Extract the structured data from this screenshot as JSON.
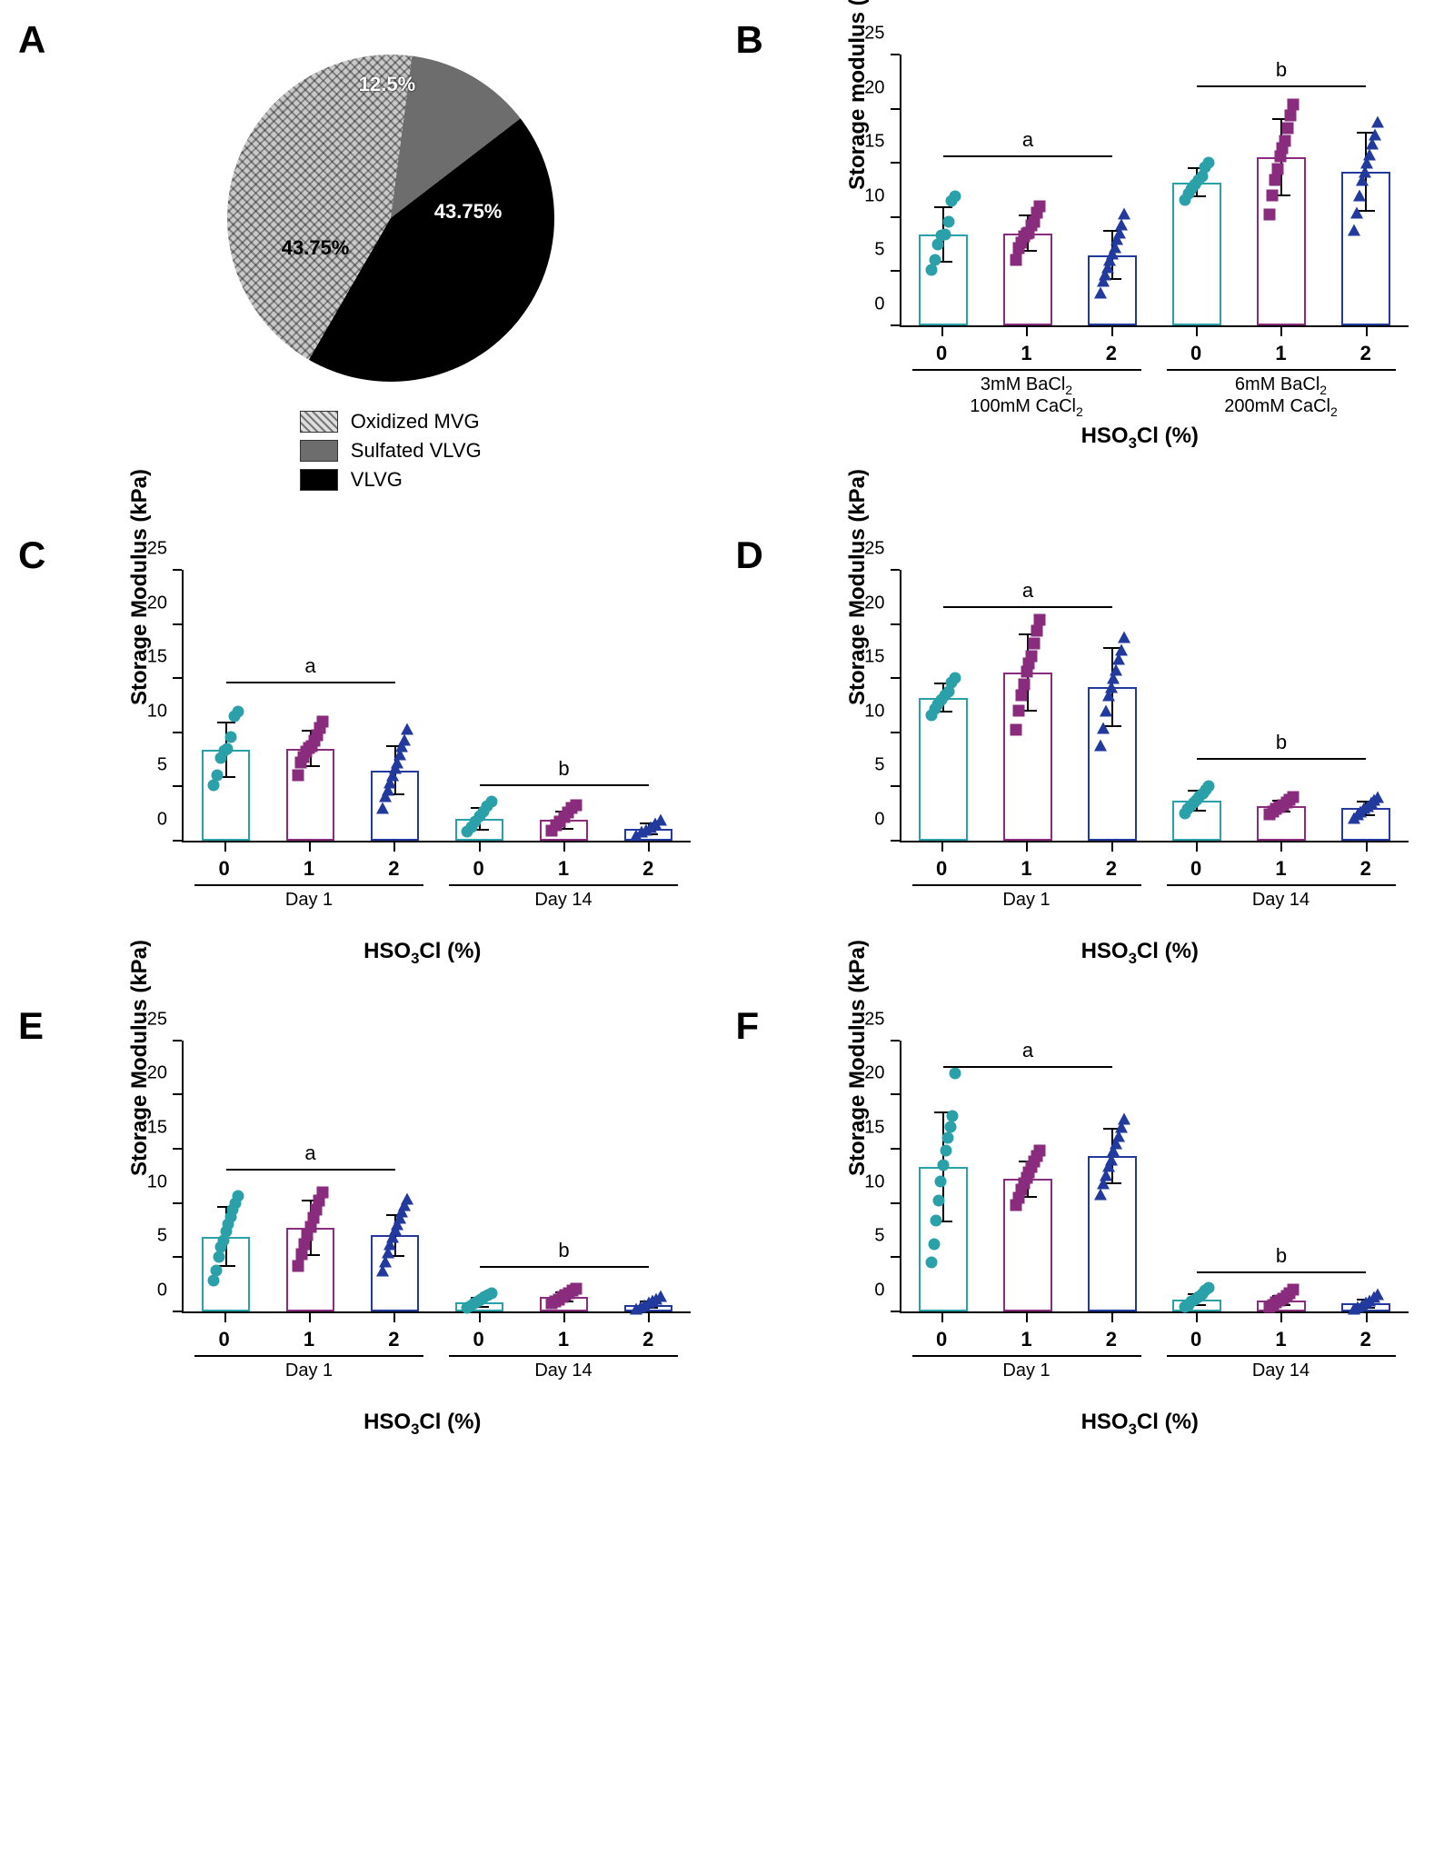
{
  "colors": {
    "series0": {
      "stroke": "#2aa0a8",
      "fill": "#2aa0a8"
    },
    "series1": {
      "stroke": "#8a2c7d",
      "fill": "#8a2c7d"
    },
    "series2": {
      "stroke": "#223a9e",
      "fill": "#223a9e"
    },
    "pie_oxidized": "#c9c9c9",
    "pie_sulfated": "#6d6d6d",
    "pie_vlvg": "#000000",
    "bg": "#ffffff"
  },
  "markers": [
    "circle",
    "square",
    "triangle"
  ],
  "marker_size": 13,
  "bar_border_width": 2,
  "axis_fontsize": 20,
  "label_fontsize": 24,
  "panel_label_fontsize": 42,
  "x_axis_title": "HSO₃Cl (%)",
  "y_axis_title": "Storage modulus (kPa)",
  "y_axis_title_cap": "Storage Modulus (kPa)",
  "panelA": {
    "label": "A",
    "type": "pie",
    "slices": [
      {
        "name": "Oxidized MVG",
        "pct": 43.75,
        "color_key": "pie_oxidized",
        "pattern": "crosshatch",
        "text_color": "#000"
      },
      {
        "name": "Sulfated VLVG",
        "pct": 12.5,
        "color_key": "pie_sulfated",
        "pattern": "solid",
        "text_color": "#fff"
      },
      {
        "name": "VLVG",
        "pct": 43.75,
        "color_key": "pie_vlvg",
        "pattern": "solid",
        "text_color": "#fff"
      }
    ],
    "legend": [
      {
        "swatch": "crosshatch",
        "text": "Oxidized MVG"
      },
      {
        "swatch": "gray",
        "text": "Sulfated VLVG"
      },
      {
        "swatch": "black",
        "text": "VLVG"
      }
    ]
  },
  "panelB": {
    "label": "B",
    "type": "bar_scatter",
    "ylim": [
      0,
      25
    ],
    "ytick_step": 5,
    "y_title_key": "y_axis_title",
    "groups": [
      {
        "x": "0",
        "series": 0,
        "mean": 8.4,
        "err": 2.6,
        "points": [
          5.1,
          6.0,
          7.5,
          8.3,
          8.4,
          9.6,
          11.5,
          11.9
        ]
      },
      {
        "x": "1",
        "series": 1,
        "mean": 8.5,
        "err": 1.7,
        "points": [
          6.0,
          7.1,
          7.6,
          8.2,
          8.5,
          8.6,
          9.2,
          9.6,
          10.4,
          11.0
        ]
      },
      {
        "x": "2",
        "series": 2,
        "mean": 6.5,
        "err": 2.3,
        "points": [
          3.0,
          4.1,
          4.7,
          5.4,
          6.0,
          6.6,
          7.2,
          8.0,
          8.6,
          9.3,
          10.3
        ]
      },
      {
        "x": "0",
        "series": 0,
        "mean": 13.2,
        "err": 1.4,
        "points": [
          11.6,
          12.2,
          12.6,
          13.0,
          13.4,
          13.8,
          14.6,
          15.0
        ]
      },
      {
        "x": "1",
        "series": 1,
        "mean": 15.5,
        "err": 3.6,
        "points": [
          10.2,
          12.0,
          13.4,
          14.4,
          15.6,
          16.4,
          17.0,
          18.2,
          19.4,
          20.4
        ]
      },
      {
        "x": "2",
        "series": 2,
        "mean": 14.2,
        "err": 3.7,
        "points": [
          8.8,
          10.4,
          12.0,
          13.4,
          14.2,
          15.0,
          15.8,
          16.8,
          17.6,
          18.8
        ]
      }
    ],
    "group_brackets": [
      {
        "from": 0,
        "to": 2,
        "lines": [
          "3mM BaCl₂",
          "100mM CaCl₂"
        ]
      },
      {
        "from": 3,
        "to": 5,
        "lines": [
          "6mM BaCl₂",
          "200mM CaCl₂"
        ]
      }
    ],
    "sig": [
      {
        "from": 0,
        "to": 2,
        "label": "a",
        "y": 15.5
      },
      {
        "from": 3,
        "to": 5,
        "label": "b",
        "y": 22
      }
    ]
  },
  "panelC": {
    "label": "C",
    "type": "bar_scatter",
    "ylim": [
      0,
      25
    ],
    "ytick_step": 5,
    "y_title_key": "y_axis_title_cap",
    "groups": [
      {
        "x": "0",
        "series": 0,
        "mean": 8.4,
        "err": 2.6,
        "points": [
          5.1,
          6.0,
          7.6,
          8.3,
          8.5,
          9.6,
          11.5,
          11.9
        ]
      },
      {
        "x": "1",
        "series": 1,
        "mean": 8.5,
        "err": 1.7,
        "points": [
          6.0,
          7.2,
          7.7,
          8.2,
          8.6,
          8.7,
          9.2,
          9.7,
          10.4,
          11.0
        ]
      },
      {
        "x": "2",
        "series": 2,
        "mean": 6.5,
        "err": 2.3,
        "points": [
          3.0,
          4.1,
          4.7,
          5.4,
          6.0,
          6.7,
          7.2,
          8.0,
          8.7,
          9.3,
          10.3
        ]
      },
      {
        "x": "0",
        "series": 0,
        "mean": 2.0,
        "err": 1.1,
        "points": [
          0.8,
          1.3,
          1.8,
          2.3,
          2.7,
          3.2,
          3.6
        ]
      },
      {
        "x": "1",
        "series": 1,
        "mean": 1.9,
        "err": 0.9,
        "points": [
          0.9,
          1.4,
          1.8,
          2.2,
          2.6,
          3.0,
          3.3
        ]
      },
      {
        "x": "2",
        "series": 2,
        "mean": 1.1,
        "err": 0.6,
        "points": [
          0.5,
          0.8,
          1.0,
          1.3,
          1.6,
          1.9
        ]
      }
    ],
    "group_brackets": [
      {
        "from": 0,
        "to": 2,
        "lines": [
          "Day 1"
        ]
      },
      {
        "from": 3,
        "to": 5,
        "lines": [
          "Day 14"
        ]
      }
    ],
    "sig": [
      {
        "from": 0,
        "to": 2,
        "label": "a",
        "y": 14.5
      },
      {
        "from": 3,
        "to": 5,
        "label": "b",
        "y": 5
      }
    ]
  },
  "panelD": {
    "label": "D",
    "type": "bar_scatter",
    "ylim": [
      0,
      25
    ],
    "ytick_step": 5,
    "y_title_key": "y_axis_title_cap",
    "groups": [
      {
        "x": "0",
        "series": 0,
        "mean": 13.2,
        "err": 1.4,
        "points": [
          11.6,
          12.2,
          12.6,
          13.0,
          13.4,
          13.8,
          14.6,
          15.0
        ]
      },
      {
        "x": "1",
        "series": 1,
        "mean": 15.5,
        "err": 3.6,
        "points": [
          10.2,
          12.0,
          13.4,
          14.4,
          15.6,
          16.4,
          17.0,
          18.2,
          19.4,
          20.4
        ]
      },
      {
        "x": "2",
        "series": 2,
        "mean": 14.2,
        "err": 3.7,
        "points": [
          8.8,
          10.4,
          12.0,
          13.4,
          14.2,
          15.0,
          15.8,
          16.8,
          17.6,
          18.8
        ]
      },
      {
        "x": "0",
        "series": 0,
        "mean": 3.7,
        "err": 1.0,
        "points": [
          2.5,
          2.9,
          3.2,
          3.5,
          3.8,
          4.1,
          4.4,
          4.7,
          5.0
        ]
      },
      {
        "x": "1",
        "series": 1,
        "mean": 3.2,
        "err": 0.6,
        "points": [
          2.4,
          2.7,
          2.9,
          3.1,
          3.3,
          3.5,
          3.8,
          4.0
        ]
      },
      {
        "x": "2",
        "series": 2,
        "mean": 3.0,
        "err": 0.7,
        "points": [
          2.1,
          2.4,
          2.7,
          3.0,
          3.2,
          3.5,
          3.8,
          4.0
        ]
      }
    ],
    "group_brackets": [
      {
        "from": 0,
        "to": 2,
        "lines": [
          "Day 1"
        ]
      },
      {
        "from": 3,
        "to": 5,
        "lines": [
          "Day 14"
        ]
      }
    ],
    "sig": [
      {
        "from": 0,
        "to": 2,
        "label": "a",
        "y": 21.5
      },
      {
        "from": 3,
        "to": 5,
        "label": "b",
        "y": 7.5
      }
    ]
  },
  "panelE": {
    "label": "E",
    "type": "bar_scatter",
    "ylim": [
      0,
      25
    ],
    "ytick_step": 5,
    "y_title_key": "y_axis_title_cap",
    "groups": [
      {
        "x": "0",
        "series": 0,
        "mean": 6.9,
        "err": 2.8,
        "points": [
          2.8,
          3.8,
          5.0,
          5.9,
          6.5,
          7.4,
          8.0,
          8.7,
          9.4,
          10.0,
          10.6
        ]
      },
      {
        "x": "1",
        "series": 1,
        "mean": 7.7,
        "err": 2.6,
        "points": [
          4.2,
          5.3,
          6.2,
          7.0,
          7.8,
          8.6,
          9.4,
          10.2,
          11.0
        ]
      },
      {
        "x": "2",
        "series": 2,
        "mean": 7.0,
        "err": 2.0,
        "points": [
          3.8,
          4.6,
          5.4,
          6.2,
          6.9,
          7.5,
          8.0,
          8.6,
          9.2,
          9.8,
          10.4
        ]
      },
      {
        "x": "0",
        "series": 0,
        "mean": 0.8,
        "err": 0.5,
        "points": [
          0.3,
          0.5,
          0.7,
          0.9,
          1.1,
          1.3,
          1.5,
          1.7
        ]
      },
      {
        "x": "1",
        "series": 1,
        "mean": 1.3,
        "err": 0.5,
        "points": [
          0.7,
          0.9,
          1.1,
          1.3,
          1.5,
          1.7,
          1.9,
          2.1
        ]
      },
      {
        "x": "2",
        "series": 2,
        "mean": 0.6,
        "err": 0.4,
        "points": [
          0.2,
          0.4,
          0.6,
          0.8,
          1.0,
          1.2,
          1.4
        ]
      }
    ],
    "group_brackets": [
      {
        "from": 0,
        "to": 2,
        "lines": [
          "Day 1"
        ]
      },
      {
        "from": 3,
        "to": 5,
        "lines": [
          "Day 14"
        ]
      }
    ],
    "sig": [
      {
        "from": 0,
        "to": 2,
        "label": "a",
        "y": 13
      },
      {
        "from": 3,
        "to": 5,
        "label": "b",
        "y": 4
      }
    ]
  },
  "panelF": {
    "label": "F",
    "type": "bar_scatter",
    "ylim": [
      0,
      25
    ],
    "ytick_step": 5,
    "y_title_key": "y_axis_title_cap",
    "groups": [
      {
        "x": "0",
        "series": 0,
        "mean": 13.3,
        "err": 5.1,
        "points": [
          4.5,
          6.2,
          8.4,
          10.2,
          12.0,
          13.5,
          14.8,
          16.0,
          17.0,
          18.0,
          22.0
        ]
      },
      {
        "x": "1",
        "series": 1,
        "mean": 12.2,
        "err": 1.7,
        "points": [
          9.8,
          10.5,
          11.2,
          11.8,
          12.3,
          12.8,
          13.3,
          13.8,
          14.3,
          14.8
        ]
      },
      {
        "x": "2",
        "series": 2,
        "mean": 14.3,
        "err": 2.6,
        "points": [
          10.8,
          11.8,
          12.6,
          13.4,
          14.0,
          14.8,
          15.5,
          16.2,
          17.0,
          17.8
        ]
      },
      {
        "x": "0",
        "series": 0,
        "mean": 1.1,
        "err": 0.6,
        "points": [
          0.4,
          0.6,
          0.9,
          1.1,
          1.3,
          1.6,
          1.9,
          2.2
        ]
      },
      {
        "x": "1",
        "series": 1,
        "mean": 1.0,
        "err": 0.5,
        "points": [
          0.4,
          0.6,
          0.8,
          1.0,
          1.2,
          1.4,
          1.7,
          2.0
        ]
      },
      {
        "x": "2",
        "series": 2,
        "mean": 0.7,
        "err": 0.5,
        "points": [
          0.2,
          0.4,
          0.6,
          0.8,
          1.0,
          1.3,
          1.6
        ]
      }
    ],
    "group_brackets": [
      {
        "from": 0,
        "to": 2,
        "lines": [
          "Day 1"
        ]
      },
      {
        "from": 3,
        "to": 5,
        "lines": [
          "Day 14"
        ]
      }
    ],
    "sig": [
      {
        "from": 0,
        "to": 2,
        "label": "a",
        "y": 22.5
      },
      {
        "from": 3,
        "to": 5,
        "label": "b",
        "y": 3.5
      }
    ]
  }
}
